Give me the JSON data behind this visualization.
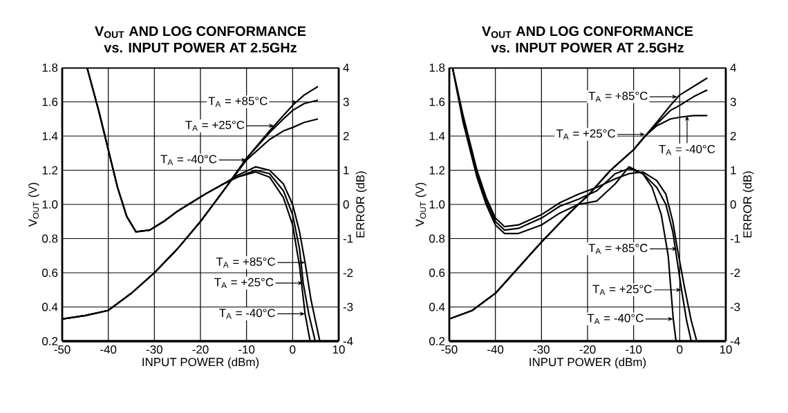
{
  "chart_data": [
    {
      "type": "line",
      "title": "V$_{OUT}$ AND LOG CONFORMANCE",
      "subtitle": "vs. INPUT POWER AT 2.5GHz",
      "xlabel": "INPUT POWER (dBm)",
      "ylabel": "V$_{OUT}$ (V)",
      "y2label": "ERROR (dB)",
      "xlim": [
        -50,
        10
      ],
      "xticks": [
        -50,
        -40,
        -30,
        -20,
        -10,
        0,
        10
      ],
      "ylim": [
        0.2,
        1.8
      ],
      "yticks": [
        0.2,
        0.4,
        0.6,
        0.8,
        {
          "value": 1.0,
          "label": "1.0"
        },
        1.2,
        1.4,
        1.6,
        1.8
      ],
      "y2lim": [
        -4,
        4
      ],
      "y2ticks": [
        -4,
        -3,
        -2,
        -1,
        0,
        1,
        2,
        3,
        4
      ],
      "grid": true,
      "series": [
        {
          "color": "#000000",
          "x": [
            -50,
            -45,
            -40,
            -35,
            -30,
            -25,
            -20,
            -15,
            -10,
            -5,
            -2,
            0,
            2.5,
            5.5
          ],
          "values": [
            0.33,
            0.35,
            0.38,
            0.48,
            0.6,
            0.74,
            0.9,
            1.08,
            1.27,
            1.43,
            1.52,
            1.58,
            1.64,
            1.69
          ]
        },
        {
          "color": "#000000",
          "x": [
            -50,
            -45,
            -40,
            -35,
            -30,
            -25,
            -20,
            -15,
            -10,
            -5,
            -2,
            0,
            2.5,
            5.5
          ],
          "values": [
            0.33,
            0.35,
            0.38,
            0.48,
            0.6,
            0.74,
            0.9,
            1.08,
            1.27,
            1.42,
            1.5,
            1.55,
            1.59,
            1.61
          ]
        },
        {
          "color": "#000000",
          "x": [
            -50,
            -45,
            -40,
            -35,
            -30,
            -25,
            -20,
            -15,
            -10,
            -5,
            -2,
            0,
            2.5,
            5.5
          ],
          "values": [
            0.33,
            0.35,
            0.38,
            0.48,
            0.6,
            0.74,
            0.9,
            1.08,
            1.26,
            1.38,
            1.43,
            1.45,
            1.48,
            1.5
          ]
        },
        {
          "color": "#000000",
          "axis": "y2",
          "x": [
            -44.6,
            -42,
            -40,
            -38,
            -36,
            -34,
            -31,
            -28,
            -25,
            -22,
            -19,
            -15,
            -12,
            -8,
            -5,
            -2,
            0,
            1.5,
            2.7,
            4,
            5.9
          ],
          "values": [
            4,
            2.7,
            1.6,
            0.5,
            -0.35,
            -0.8,
            -0.75,
            -0.5,
            -0.2,
            0.05,
            0.3,
            0.6,
            0.85,
            1.1,
            1.0,
            0.6,
            0,
            -0.8,
            -1.7,
            -2.8,
            -4
          ]
        },
        {
          "color": "#000000",
          "axis": "y2",
          "x": [
            -44.6,
            -42,
            -40,
            -38,
            -36,
            -34,
            -31,
            -28,
            -25,
            -22,
            -19,
            -15,
            -12,
            -8,
            -5,
            -2,
            0,
            1.5,
            2.3,
            3.5,
            4.9
          ],
          "values": [
            4,
            2.7,
            1.6,
            0.5,
            -0.35,
            -0.8,
            -0.75,
            -0.5,
            -0.2,
            0.05,
            0.3,
            0.6,
            0.8,
            1.0,
            0.9,
            0.4,
            -0.3,
            -1.3,
            -2.3,
            -3.2,
            -4
          ]
        },
        {
          "color": "#000000",
          "axis": "y2",
          "x": [
            -44.6,
            -42,
            -40,
            -38,
            -36,
            -34,
            -31,
            -28,
            -25,
            -22,
            -19,
            -15,
            -12,
            -8,
            -5,
            -2,
            0,
            1.5,
            2.7,
            3.8
          ],
          "values": [
            4,
            2.7,
            1.6,
            0.5,
            -0.35,
            -0.8,
            -0.75,
            -0.5,
            -0.2,
            0.05,
            0.3,
            0.6,
            0.8,
            0.95,
            0.8,
            0.2,
            -0.6,
            -1.8,
            -3.2,
            -4
          ]
        }
      ],
      "annotations": [
        {
          "text": "T$_{A}$ = +85°C",
          "x": 1,
          "y": 1.6
        },
        {
          "text": "T$_{A}$ = +25°C",
          "x": -4,
          "y": 1.46
        },
        {
          "text": "T$_{A}$ = -40°C",
          "x": -10,
          "y": 1.26
        },
        {
          "text": "T$_{A}$ = +85°C",
          "x": 2.7,
          "y": 0.66
        },
        {
          "text": "T$_{A}$ = +25°C",
          "x": 2.3,
          "y": 0.54
        },
        {
          "text": "T$_{A}$ = -40°C",
          "x": 2.7,
          "y": 0.36
        }
      ]
    },
    {
      "type": "line",
      "title": "V$_{OUT}$ AND LOG CONFORMANCE",
      "subtitle": "vs. INPUT POWER AT 2.5GHz",
      "xlabel": "INPUT POWER (dBm)",
      "ylabel": "V$_{OUT}$ (V)",
      "y2label": "ERROR (dB)",
      "xlim": [
        -50,
        10
      ],
      "xticks": [
        -50,
        -40,
        -30,
        -20,
        -10,
        0,
        10
      ],
      "ylim": [
        0.2,
        1.8
      ],
      "yticks": [
        0.2,
        0.4,
        0.6,
        0.8,
        {
          "value": 1.0,
          "label": "1.0"
        },
        1.2,
        1.4,
        1.6,
        1.8
      ],
      "y2lim": [
        -4,
        4
      ],
      "y2ticks": [
        -4,
        -3,
        -2,
        -1,
        0,
        1,
        2,
        3,
        4
      ],
      "grid": true,
      "series": [
        {
          "color": "#000000",
          "x": [
            -50,
            -45,
            -40,
            -35,
            -30,
            -25,
            -22,
            -20,
            -15,
            -10,
            -7.5,
            -5,
            -2,
            0,
            3,
            6
          ],
          "values": [
            0.33,
            0.38,
            0.48,
            0.63,
            0.78,
            0.92,
            1.0,
            1.05,
            1.2,
            1.32,
            1.4,
            1.48,
            1.58,
            1.64,
            1.69,
            1.74
          ]
        },
        {
          "color": "#000000",
          "x": [
            -50,
            -45,
            -40,
            -35,
            -30,
            -25,
            -22,
            -20,
            -15,
            -10,
            -7.5,
            -5,
            -2,
            0,
            3,
            6
          ],
          "values": [
            0.33,
            0.38,
            0.48,
            0.63,
            0.78,
            0.92,
            1.0,
            1.05,
            1.2,
            1.32,
            1.4,
            1.47,
            1.55,
            1.58,
            1.63,
            1.67
          ]
        },
        {
          "color": "#000000",
          "x": [
            -50,
            -45,
            -40,
            -35,
            -30,
            -25,
            -22,
            -20,
            -15,
            -10,
            -7.5,
            -5,
            -2,
            0,
            3,
            6
          ],
          "values": [
            0.33,
            0.38,
            0.48,
            0.63,
            0.78,
            0.92,
            1.0,
            1.05,
            1.2,
            1.32,
            1.4,
            1.46,
            1.5,
            1.51,
            1.52,
            1.52
          ]
        },
        {
          "color": "#000000",
          "axis": "y2",
          "x": [
            -49.3,
            -47,
            -44,
            -42,
            -40,
            -38,
            -35,
            -30,
            -26,
            -22,
            -18,
            -14,
            -11,
            -8,
            -5,
            -3,
            -1.5,
            -0.5,
            1,
            2.5,
            3.7
          ],
          "values": [
            4,
            2.6,
            1.0,
            0.2,
            -0.4,
            -0.65,
            -0.6,
            -0.3,
            0.05,
            0.3,
            0.5,
            0.75,
            0.9,
            0.95,
            0.7,
            0.3,
            -0.5,
            -1.3,
            -2.4,
            -3.4,
            -4
          ]
        },
        {
          "color": "#000000",
          "axis": "y2",
          "x": [
            -49.3,
            -47,
            -44,
            -42,
            -40,
            -38,
            -35,
            -30,
            -26,
            -22,
            -18,
            -14,
            -11,
            -8,
            -5,
            -3,
            -1.5,
            0.4,
            1.5,
            2.5
          ],
          "values": [
            4,
            2.5,
            0.9,
            0.1,
            -0.5,
            -0.75,
            -0.7,
            -0.4,
            -0.05,
            0.15,
            0.4,
            0.9,
            1.05,
            0.9,
            0.5,
            0,
            -0.8,
            -2.5,
            -3.4,
            -4
          ]
        },
        {
          "color": "#000000",
          "axis": "y2",
          "x": [
            -49.3,
            -47,
            -44,
            -42,
            -40,
            -38,
            -35,
            -30,
            -26,
            -22,
            -18,
            -14,
            -11,
            -8,
            -6,
            -4,
            -2.5,
            -1.4,
            -0.8
          ],
          "values": [
            4,
            2.4,
            0.8,
            0,
            -0.6,
            -0.85,
            -0.85,
            -0.6,
            -0.25,
            0,
            0.1,
            0.6,
            1.1,
            0.9,
            0.5,
            -0.3,
            -1.5,
            -3.35,
            -4
          ]
        }
      ],
      "annotations": [
        {
          "text": "T$_{A}$ = +85°C",
          "x": -0.5,
          "y": 1.63
        },
        {
          "text": "T$_{A}$ = +25°C",
          "x": -7.5,
          "y": 1.41
        },
        {
          "text": "T$_{A}$ = -40°C",
          "x": 1.6,
          "y": 1.52
        },
        {
          "text": "T$_{A}$ = +85°C",
          "x": -0.5,
          "y": 0.74
        },
        {
          "text": "T$_{A}$ = +25°C",
          "x": 0.4,
          "y": 0.5
        },
        {
          "text": "T$_{A}$ = -40°C",
          "x": -1.4,
          "y": 0.33
        }
      ]
    }
  ]
}
